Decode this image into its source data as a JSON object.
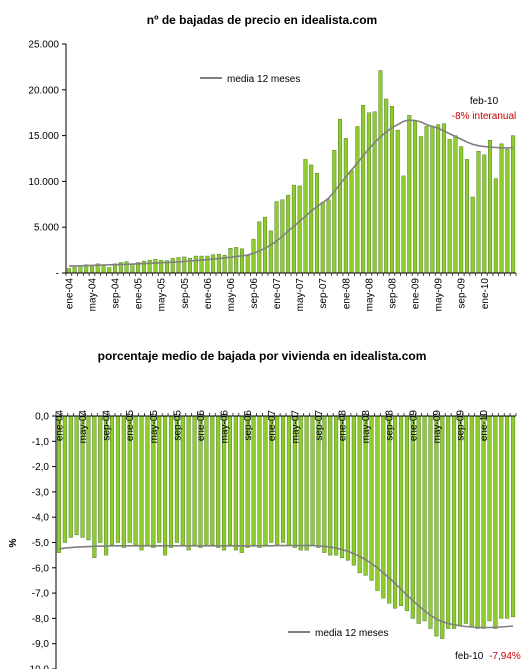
{
  "colors": {
    "bar_fill": "#8fcc2f",
    "bar_stroke": "#3d6b12",
    "avg_line": "#808080",
    "accent_red": "#cc0000"
  },
  "chart_data": [
    {
      "type": "bar",
      "title": "nº de bajadas de precio en idealista.com",
      "ylim": [
        0,
        25000
      ],
      "y_tick_labels": [
        "-",
        "5.000",
        "10.000",
        "15.000",
        "20.000",
        "25.000"
      ],
      "y_tick_values": [
        0,
        5000,
        10000,
        15000,
        20000,
        25000
      ],
      "x_tick_labels": [
        "ene-04",
        "may-04",
        "sep-04",
        "ene-05",
        "may-05",
        "sep-05",
        "ene-06",
        "may-06",
        "sep-06",
        "ene-07",
        "may-07",
        "sep-07",
        "ene-08",
        "may-08",
        "sep-08",
        "ene-09",
        "may-09",
        "sep-09",
        "ene-10"
      ],
      "x_tick_every": 4,
      "grid": false,
      "legend": {
        "label": "media 12 meses",
        "position": "top-left"
      },
      "annotation": {
        "line1": "feb-10",
        "line2": "-8% interanual"
      },
      "series": [
        {
          "values": [
            500,
            650,
            850,
            900,
            850,
            1000,
            800,
            600,
            1000,
            1150,
            1250,
            1000,
            1150,
            1300,
            1400,
            1500,
            1400,
            1350,
            1600,
            1700,
            1750,
            1600,
            1850,
            1850,
            1850,
            2000,
            2050,
            1950,
            2700,
            2800,
            2650,
            2000,
            3700,
            5600,
            6100,
            4600,
            7800,
            8000,
            8500,
            9600,
            9500,
            12400,
            11800,
            10900,
            7700,
            8000,
            13400,
            16800,
            14700,
            11200,
            16000,
            18300,
            17500,
            17600,
            22100,
            19000,
            18200,
            15600,
            10600,
            17200,
            16600,
            14900,
            16000,
            16000,
            16200,
            16300,
            14600,
            15000,
            13800,
            12400,
            8300,
            13300,
            12900,
            14500,
            10300,
            14100,
            13500,
            15000
          ]
        },
        {
          "name": "media 12 meses",
          "values": [
            760,
            770,
            790,
            810,
            830,
            850,
            870,
            890,
            910,
            930,
            950,
            970,
            1000,
            1030,
            1060,
            1090,
            1120,
            1150,
            1180,
            1210,
            1260,
            1310,
            1360,
            1410,
            1470,
            1530,
            1590,
            1650,
            1720,
            1800,
            1880,
            1960,
            2150,
            2400,
            2700,
            3050,
            3500,
            4000,
            4550,
            5100,
            5650,
            6200,
            6750,
            7250,
            7700,
            8150,
            8900,
            9700,
            10500,
            11250,
            12000,
            12800,
            13550,
            14250,
            14850,
            15400,
            15850,
            16200,
            16550,
            16700,
            16650,
            16500,
            16200,
            16000,
            15800,
            15500,
            15200,
            14900,
            14600,
            14300,
            14050,
            13900,
            13800,
            13750,
            13700,
            13650,
            13650,
            13700
          ]
        }
      ]
    },
    {
      "type": "bar",
      "title": "porcentaje medio de bajada por vivienda en idealista.com",
      "ylabel": "%",
      "ylim": [
        -10,
        0
      ],
      "y_tick_labels": [
        "0,0",
        "-1,0",
        "-2,0",
        "-3,0",
        "-4,0",
        "-5,0",
        "-6,0",
        "-7,0",
        "-8,0",
        "-9,0",
        "-10,0"
      ],
      "y_tick_values": [
        0,
        -1,
        -2,
        -3,
        -4,
        -5,
        -6,
        -7,
        -8,
        -9,
        -10
      ],
      "x_tick_labels": [
        "ene-04",
        "may-04",
        "sep-04",
        "ene-05",
        "may-05",
        "sep-05",
        "ene-06",
        "may-06",
        "sep-06",
        "ene-07",
        "may-07",
        "sep-07",
        "ene-08",
        "may-08",
        "sep-08",
        "ene-09",
        "may-09",
        "sep-09",
        "ene-10"
      ],
      "x_tick_every": 4,
      "grid": false,
      "legend": {
        "label": "media 12 meses",
        "position": "bottom-right"
      },
      "annotation": {
        "line1": "feb-10",
        "line2": "-7,94%"
      },
      "series": [
        {
          "values": [
            -5.4,
            -5.0,
            -4.8,
            -4.7,
            -4.8,
            -4.9,
            -5.6,
            -5.0,
            -5.5,
            -5.1,
            -5.0,
            -5.2,
            -5.0,
            -5.1,
            -5.3,
            -5.1,
            -5.2,
            -5.0,
            -5.5,
            -5.2,
            -5.0,
            -5.1,
            -5.3,
            -5.1,
            -5.2,
            -5.1,
            -5.1,
            -5.2,
            -5.3,
            -5.1,
            -5.3,
            -5.4,
            -5.2,
            -5.1,
            -5.2,
            -5.1,
            -5.0,
            -5.1,
            -5.0,
            -5.1,
            -5.2,
            -5.3,
            -5.3,
            -5.1,
            -5.2,
            -5.4,
            -5.5,
            -5.5,
            -5.6,
            -5.7,
            -5.9,
            -6.2,
            -6.3,
            -6.5,
            -6.9,
            -7.2,
            -7.4,
            -7.6,
            -7.5,
            -7.7,
            -8.0,
            -8.2,
            -8.1,
            -8.4,
            -8.7,
            -8.8,
            -8.4,
            -8.4,
            -8.3,
            -8.2,
            -8.3,
            -8.4,
            -8.4,
            -8.1,
            -8.4,
            -8.0,
            -8.0,
            -7.94
          ]
        },
        {
          "name": "media 12 meses",
          "values": [
            -5.25,
            -5.22,
            -5.2,
            -5.18,
            -5.17,
            -5.16,
            -5.15,
            -5.14,
            -5.14,
            -5.13,
            -5.13,
            -5.13,
            -5.13,
            -5.13,
            -5.13,
            -5.13,
            -5.13,
            -5.13,
            -5.13,
            -5.13,
            -5.13,
            -5.13,
            -5.13,
            -5.13,
            -5.13,
            -5.13,
            -5.13,
            -5.13,
            -5.13,
            -5.13,
            -5.13,
            -5.13,
            -5.13,
            -5.13,
            -5.13,
            -5.13,
            -5.13,
            -5.12,
            -5.12,
            -5.12,
            -5.12,
            -5.12,
            -5.12,
            -5.12,
            -5.13,
            -5.15,
            -5.18,
            -5.22,
            -5.28,
            -5.35,
            -5.44,
            -5.55,
            -5.68,
            -5.83,
            -6.0,
            -6.2,
            -6.4,
            -6.62,
            -6.85,
            -7.08,
            -7.3,
            -7.5,
            -7.7,
            -7.88,
            -8.02,
            -8.13,
            -8.2,
            -8.25,
            -8.29,
            -8.32,
            -8.34,
            -8.36,
            -8.36,
            -8.36,
            -8.35,
            -8.34,
            -8.32,
            -8.3
          ]
        }
      ]
    }
  ]
}
